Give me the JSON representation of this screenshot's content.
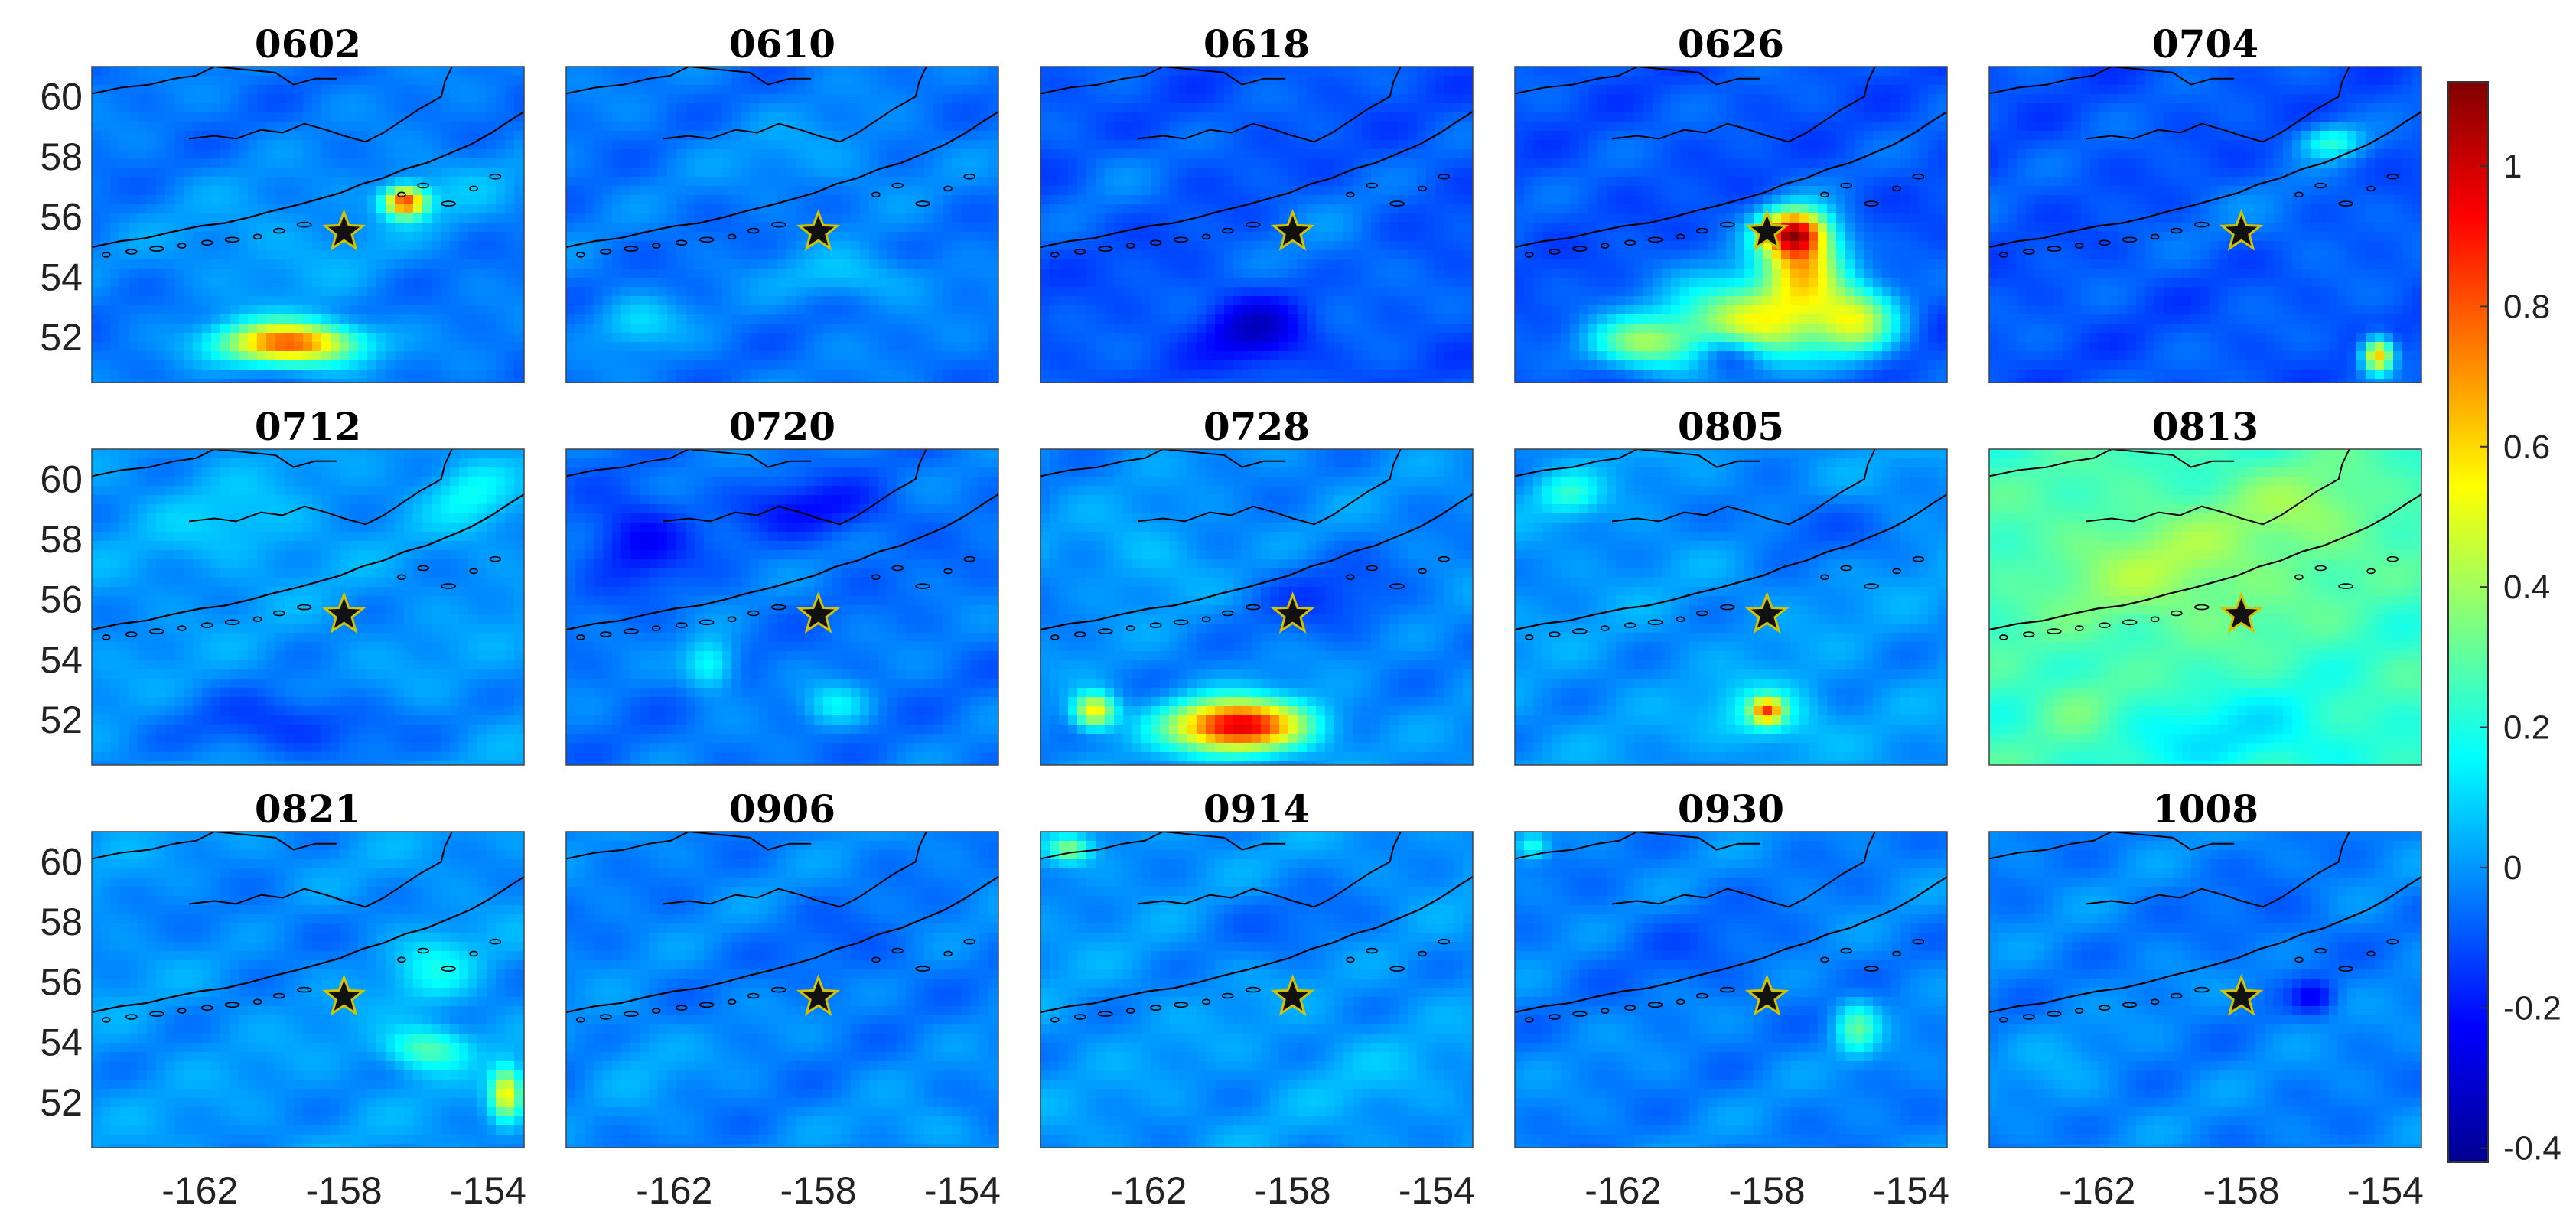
{
  "chart_data": {
    "type": "heatmap",
    "layout": "small-multiples 3x5",
    "xlim": [
      -165,
      -153
    ],
    "ylim": [
      50.5,
      61
    ],
    "x_ticks": [
      "-162",
      "-158",
      "-154"
    ],
    "y_ticks": [
      "60",
      "58",
      "56",
      "54",
      "52"
    ],
    "x_tick_values": [
      -162,
      -158,
      -154
    ],
    "y_tick_values": [
      60,
      58,
      56,
      54,
      52
    ],
    "colorbar": {
      "colormap": "jet",
      "range": [
        -0.42,
        1.12
      ],
      "ticks": [
        "1",
        "0.8",
        "0.6",
        "0.4",
        "0.2",
        "0",
        "-0.2",
        "-0.4"
      ],
      "tick_values": [
        1,
        0.8,
        0.6,
        0.4,
        0.2,
        0,
        -0.2,
        -0.4
      ]
    },
    "marker": {
      "symbol": "star",
      "lon": -158,
      "lat": 55.5
    },
    "grid": false,
    "panels": [
      {
        "title": "0602",
        "base": -0.05,
        "blobs": [
          {
            "lon": -159.5,
            "lat": 51.8,
            "sx": 1.3,
            "sy": 0.5,
            "v": 0.85
          },
          {
            "lon": -156.3,
            "lat": 56.5,
            "sx": 0.4,
            "sy": 0.35,
            "v": 0.85
          },
          {
            "lon": -160,
            "lat": 55,
            "sx": 2.5,
            "sy": 1.5,
            "v": 0.08
          },
          {
            "lon": -155,
            "lat": 57,
            "sx": 1.5,
            "sy": 1,
            "v": 0.08
          }
        ]
      },
      {
        "title": "0610",
        "base": -0.05,
        "blobs": [
          {
            "lon": -157,
            "lat": 54,
            "sx": 1.5,
            "sy": 0.6,
            "v": 0.12
          },
          {
            "lon": -163,
            "lat": 52.5,
            "sx": 0.8,
            "sy": 0.6,
            "v": 0.15
          },
          {
            "lon": -158,
            "lat": 58,
            "sx": 2,
            "sy": 1,
            "v": 0.06
          }
        ]
      },
      {
        "title": "0618",
        "base": -0.1,
        "blobs": [
          {
            "lon": -159,
            "lat": 52.2,
            "sx": 1,
            "sy": 0.8,
            "v": -0.2
          },
          {
            "lon": -157,
            "lat": 55,
            "sx": 1.5,
            "sy": 1.5,
            "v": 0.06
          },
          {
            "lon": -163,
            "lat": 57.5,
            "sx": 1,
            "sy": 1,
            "v": 0.05
          }
        ]
      },
      {
        "title": "0626",
        "base": -0.1,
        "blobs": [
          {
            "lon": -158.5,
            "lat": 52.5,
            "sx": 1.5,
            "sy": 1,
            "v": 0.62
          },
          {
            "lon": -157,
            "lat": 54.5,
            "sx": 0.8,
            "sy": 1,
            "v": 0.7
          },
          {
            "lon": -157.3,
            "lat": 55.5,
            "sx": 0.6,
            "sy": 0.5,
            "v": 0.8
          },
          {
            "lon": -161.5,
            "lat": 51.8,
            "sx": 1,
            "sy": 0.6,
            "v": 0.45
          },
          {
            "lon": -155.5,
            "lat": 52.5,
            "sx": 0.8,
            "sy": 0.8,
            "v": 0.5
          },
          {
            "lon": -159,
            "lat": 51.5,
            "sx": 0.7,
            "sy": 0.5,
            "v": -0.3
          }
        ]
      },
      {
        "title": "0704",
        "base": -0.1,
        "blobs": [
          {
            "lon": -154.2,
            "lat": 51.4,
            "sx": 0.3,
            "sy": 0.4,
            "v": 0.75
          },
          {
            "lon": -155.5,
            "lat": 58.5,
            "sx": 0.6,
            "sy": 0.4,
            "v": 0.3
          },
          {
            "lon": -157,
            "lat": 56,
            "sx": 2,
            "sy": 1,
            "v": 0.05
          }
        ]
      },
      {
        "title": "0712",
        "base": 0,
        "blobs": [
          {
            "lon": -159.5,
            "lat": 51.8,
            "sx": 2,
            "sy": 0.8,
            "v": -0.15
          },
          {
            "lon": -154.5,
            "lat": 59.5,
            "sx": 0.8,
            "sy": 0.8,
            "v": 0.15
          },
          {
            "lon": -161,
            "lat": 58.5,
            "sx": 1.5,
            "sy": 1,
            "v": 0.08
          }
        ]
      },
      {
        "title": "0720",
        "base": -0.05,
        "blobs": [
          {
            "lon": -161,
            "lat": 53.8,
            "sx": 0.5,
            "sy": 0.6,
            "v": 0.25
          },
          {
            "lon": -157.5,
            "lat": 52.5,
            "sx": 0.6,
            "sy": 0.5,
            "v": 0.18
          },
          {
            "lon": -163,
            "lat": 58,
            "sx": 1,
            "sy": 1,
            "v": -0.18
          },
          {
            "lon": -158,
            "lat": 59,
            "sx": 1.5,
            "sy": 0.7,
            "v": -0.15
          }
        ]
      },
      {
        "title": "0728",
        "base": -0.02,
        "blobs": [
          {
            "lon": -159.5,
            "lat": 51.8,
            "sx": 1.3,
            "sy": 0.6,
            "v": 1.0
          },
          {
            "lon": -163.5,
            "lat": 52.3,
            "sx": 0.4,
            "sy": 0.4,
            "v": 0.6
          },
          {
            "lon": -157,
            "lat": 56,
            "sx": 1.5,
            "sy": 1,
            "v": -0.1
          },
          {
            "lon": -162,
            "lat": 57.5,
            "sx": 1.2,
            "sy": 1,
            "v": 0.08
          }
        ]
      },
      {
        "title": "0805",
        "base": 0,
        "blobs": [
          {
            "lon": -158,
            "lat": 52.3,
            "sx": 0.3,
            "sy": 0.3,
            "v": 0.65
          },
          {
            "lon": -158,
            "lat": 52.2,
            "sx": 1,
            "sy": 0.7,
            "v": 0.2
          },
          {
            "lon": -163.5,
            "lat": 59.5,
            "sx": 0.6,
            "sy": 0.5,
            "v": 0.2
          },
          {
            "lon": -157,
            "lat": 58.5,
            "sx": 1.5,
            "sy": 0.8,
            "v": -0.1
          }
        ]
      },
      {
        "title": "0813",
        "base": 0.25,
        "blobs": [
          {
            "lon": -160,
            "lat": 57,
            "sx": 2.5,
            "sy": 1.5,
            "v": 0.15
          },
          {
            "lon": -156,
            "lat": 59,
            "sx": 1.5,
            "sy": 1,
            "v": 0.12
          },
          {
            "lon": -158,
            "lat": 51.5,
            "sx": 2.5,
            "sy": 1,
            "v": -0.12
          },
          {
            "lon": -162.5,
            "lat": 52.5,
            "sx": 0.8,
            "sy": 0.8,
            "v": 0.08
          }
        ]
      },
      {
        "title": "0821",
        "base": 0,
        "blobs": [
          {
            "lon": -153.5,
            "lat": 52.3,
            "sx": 0.3,
            "sy": 0.6,
            "v": 0.55
          },
          {
            "lon": -155.7,
            "lat": 53.8,
            "sx": 0.8,
            "sy": 0.5,
            "v": 0.3
          },
          {
            "lon": -155.5,
            "lat": 56.5,
            "sx": 0.8,
            "sy": 0.8,
            "v": 0.15
          },
          {
            "lon": -160,
            "lat": 58,
            "sx": 2,
            "sy": 1,
            "v": -0.05
          }
        ]
      },
      {
        "title": "0906",
        "base": -0.03,
        "blobs": [
          {
            "lon": -163,
            "lat": 53.5,
            "sx": 1,
            "sy": 1,
            "v": 0.06
          },
          {
            "lon": -157,
            "lat": 57,
            "sx": 1.5,
            "sy": 1,
            "v": -0.05
          },
          {
            "lon": -155,
            "lat": 51,
            "sx": 1.2,
            "sy": 0.6,
            "v": 0.06
          }
        ]
      },
      {
        "title": "0914",
        "base": 0,
        "blobs": [
          {
            "lon": -164.2,
            "lat": 60.4,
            "sx": 0.4,
            "sy": 0.3,
            "v": 0.35
          },
          {
            "lon": -158,
            "lat": 58,
            "sx": 2,
            "sy": 1,
            "v": -0.06
          },
          {
            "lon": -156,
            "lat": 53,
            "sx": 1.5,
            "sy": 1,
            "v": 0.04
          }
        ]
      },
      {
        "title": "0930",
        "base": -0.03,
        "blobs": [
          {
            "lon": -155.5,
            "lat": 54.5,
            "sx": 0.4,
            "sy": 0.6,
            "v": 0.3
          },
          {
            "lon": -164.5,
            "lat": 60.5,
            "sx": 0.3,
            "sy": 0.3,
            "v": 0.25
          },
          {
            "lon": -160,
            "lat": 57,
            "sx": 2,
            "sy": 1.2,
            "v": -0.05
          }
        ]
      },
      {
        "title": "1008",
        "base": -0.03,
        "blobs": [
          {
            "lon": -156,
            "lat": 55.5,
            "sx": 0.4,
            "sy": 0.4,
            "v": -0.18
          },
          {
            "lon": -157,
            "lat": 58,
            "sx": 1.5,
            "sy": 1,
            "v": -0.05
          },
          {
            "lon": -163,
            "lat": 53,
            "sx": 1,
            "sy": 1,
            "v": 0.05
          }
        ]
      }
    ]
  }
}
